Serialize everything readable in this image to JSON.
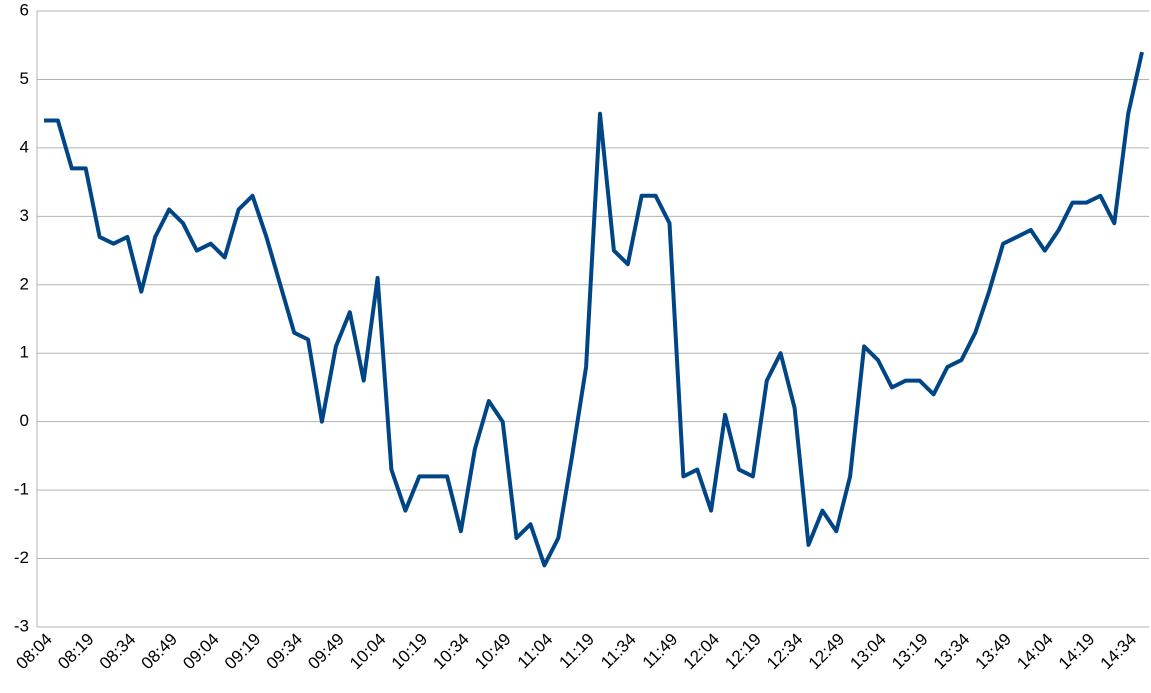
{
  "chart_data": {
    "type": "line",
    "categories": [
      "08:04",
      null,
      null,
      "08:19",
      null,
      null,
      "08:34",
      null,
      null,
      "08:49",
      null,
      null,
      "09:04",
      null,
      null,
      "09:19",
      null,
      null,
      "09:34",
      null,
      null,
      "09:49",
      null,
      null,
      "10:04",
      null,
      null,
      "10:19",
      null,
      null,
      "10:34",
      null,
      null,
      "10:49",
      null,
      null,
      "11:04",
      null,
      null,
      "11:19",
      null,
      null,
      "11:34",
      null,
      null,
      "11:49",
      null,
      null,
      "12:04",
      null,
      null,
      "12:19",
      null,
      null,
      "12:34",
      null,
      null,
      "12:49",
      null,
      null,
      "13:04",
      null,
      null,
      "13:19",
      null,
      null,
      "13:34",
      null,
      null,
      "13:49",
      null,
      null,
      "14:04",
      null,
      null,
      "14:19",
      null,
      null,
      "14:34",
      null
    ],
    "values": [
      4.4,
      4.4,
      3.7,
      3.7,
      2.7,
      2.6,
      2.7,
      1.9,
      2.7,
      3.1,
      2.9,
      2.5,
      2.6,
      2.4,
      3.1,
      3.3,
      2.7,
      2.0,
      1.3,
      1.2,
      0.0,
      1.1,
      1.6,
      0.6,
      2.1,
      -0.7,
      -1.3,
      -0.8,
      -0.8,
      -0.8,
      -1.6,
      -0.4,
      0.3,
      0.0,
      -1.7,
      -1.5,
      -2.1,
      -1.7,
      -0.5,
      0.8,
      4.5,
      2.5,
      2.3,
      3.3,
      3.3,
      2.9,
      -0.8,
      -0.7,
      -1.3,
      0.1,
      -0.7,
      -0.8,
      0.6,
      1.0,
      0.2,
      -1.8,
      -1.3,
      -1.6,
      -0.8,
      1.1,
      0.9,
      0.5,
      0.6,
      0.6,
      0.4,
      0.8,
      0.9,
      1.3,
      1.9,
      2.6,
      2.7,
      2.8,
      2.5,
      2.8,
      3.2,
      3.2,
      3.3,
      2.9,
      4.5,
      5.4
    ],
    "color": "#004586",
    "ylim": [
      -3,
      6
    ],
    "yticks": [
      -3,
      -2,
      -1,
      0,
      1,
      2,
      3,
      4,
      5,
      6
    ],
    "grid": true
  }
}
